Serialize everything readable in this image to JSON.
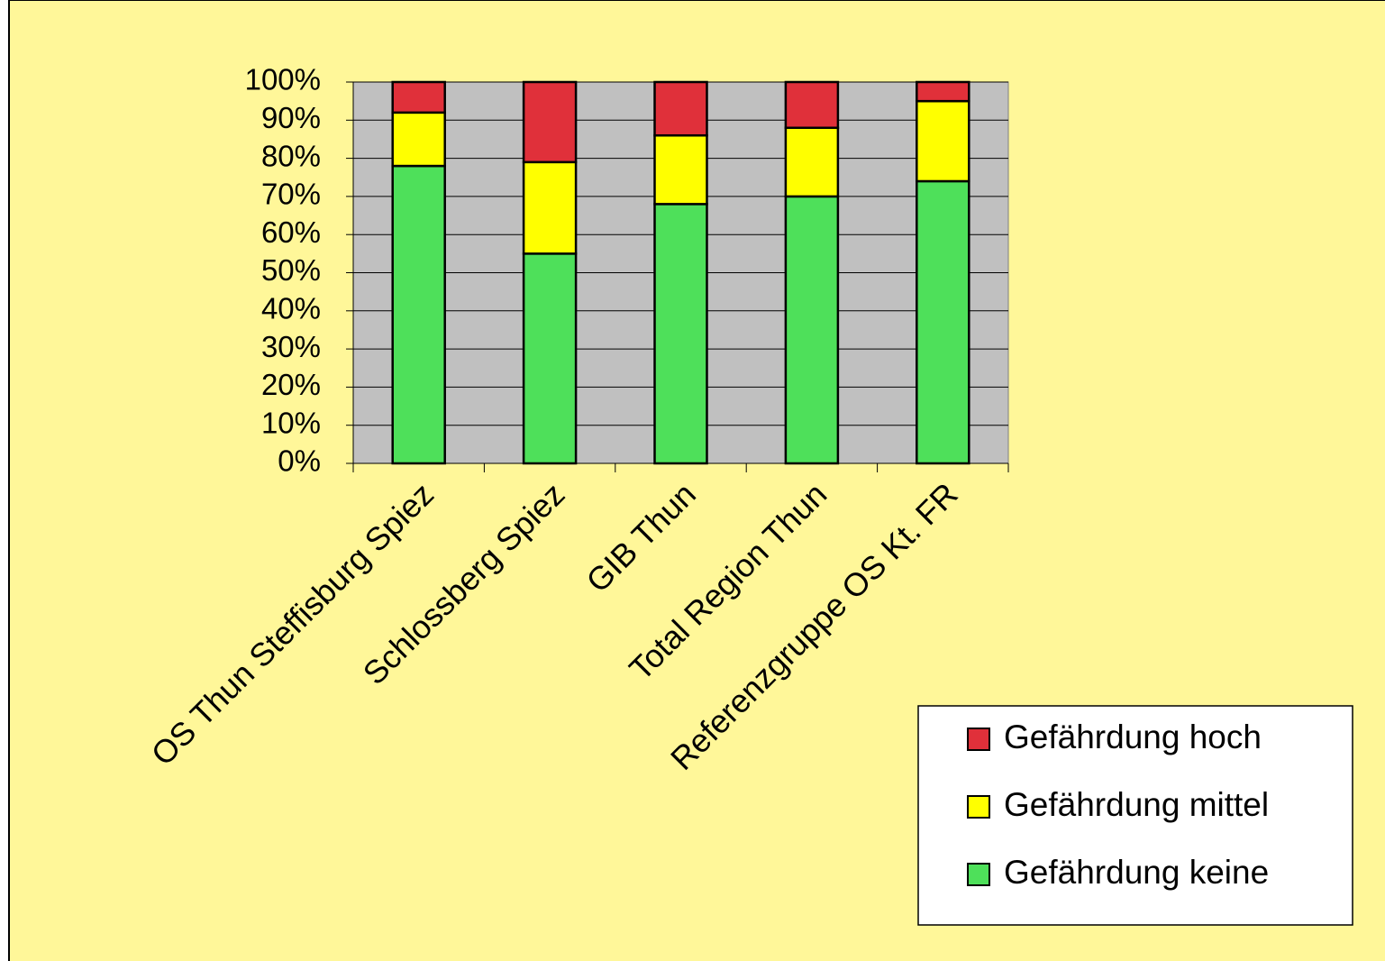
{
  "chart_data": {
    "type": "stacked_bar",
    "categories": [
      "OS Thun Steffisburg Spiez",
      "Schlossberg Spiez",
      "GIB Thun",
      "Total Region Thun",
      "Referenzgruppe OS Kt. FR"
    ],
    "series": [
      {
        "name": "Gefährdung keine",
        "color": "#4ee05a",
        "values": [
          78,
          55,
          68,
          70,
          74
        ]
      },
      {
        "name": "Gefährdung mittel",
        "color": "#ffff00",
        "values": [
          14,
          24,
          18,
          18,
          21
        ]
      },
      {
        "name": "Gefährdung hoch",
        "color": "#e0303a",
        "values": [
          8,
          21,
          14,
          12,
          5
        ]
      }
    ],
    "ylim": [
      0,
      100
    ],
    "yticks": [
      {
        "value": 0,
        "label": "0%"
      },
      {
        "value": 10,
        "label": "10%"
      },
      {
        "value": 20,
        "label": "20%"
      },
      {
        "value": 30,
        "label": "30%"
      },
      {
        "value": 40,
        "label": "40%"
      },
      {
        "value": 50,
        "label": "50%"
      },
      {
        "value": 60,
        "label": "60%"
      },
      {
        "value": 70,
        "label": "70%"
      },
      {
        "value": 80,
        "label": "80%"
      },
      {
        "value": 90,
        "label": "90%"
      },
      {
        "value": 100,
        "label": "100%"
      }
    ],
    "grid": true
  }
}
